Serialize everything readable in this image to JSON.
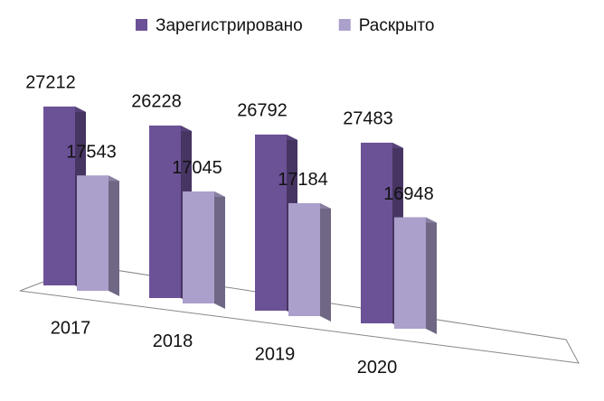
{
  "chart_data": {
    "type": "bar3d",
    "categories": [
      "2017",
      "2018",
      "2019",
      "2020"
    ],
    "series": [
      {
        "name": "Зарегистрировано",
        "color": "#6b5196",
        "values": [
          27212,
          26228,
          26792,
          27483
        ]
      },
      {
        "name": "Раскрыто",
        "color": "#ab9fcb",
        "values": [
          17543,
          17045,
          17184,
          16948
        ]
      }
    ],
    "legend": "top"
  }
}
